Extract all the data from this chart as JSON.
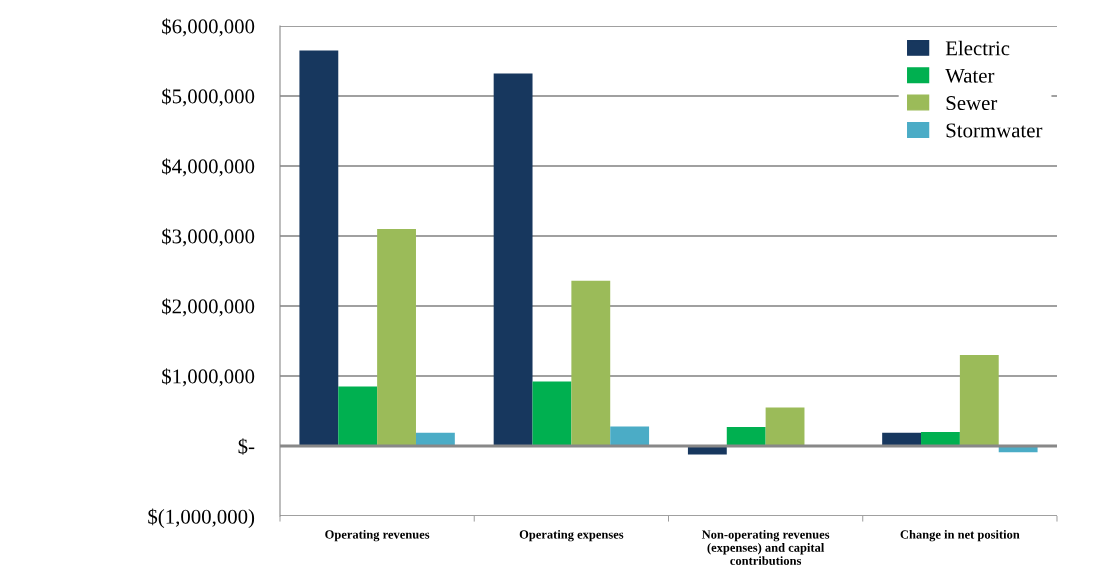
{
  "chart_data": {
    "type": "bar",
    "categories": [
      "Operating revenues",
      "Operating expenses",
      "Non-operating revenues\n(expenses) and capital\ncontributions",
      "Change in net position"
    ],
    "series": [
      {
        "name": "Electric",
        "color": "#17375e",
        "values": [
          5650000,
          5320000,
          -120000,
          190000
        ]
      },
      {
        "name": "Water",
        "color": "#00b050",
        "values": [
          850000,
          920000,
          270000,
          200000
        ]
      },
      {
        "name": "Sewer",
        "color": "#9bbb59",
        "values": [
          3100000,
          2360000,
          550000,
          1300000
        ]
      },
      {
        "name": "Stormwater",
        "color": "#4bacc6",
        "values": [
          190000,
          280000,
          0,
          -90000
        ]
      }
    ],
    "ylim": [
      -1000000,
      6000000
    ],
    "yticks": [
      {
        "value": -1000000,
        "label": "$(1,000,000)"
      },
      {
        "value": 0,
        "label": "$-"
      },
      {
        "value": 1000000,
        "label": "$1,000,000"
      },
      {
        "value": 2000000,
        "label": "$2,000,000"
      },
      {
        "value": 3000000,
        "label": "$3,000,000"
      },
      {
        "value": 4000000,
        "label": "$4,000,000"
      },
      {
        "value": 5000000,
        "label": "$5,000,000"
      },
      {
        "value": 6000000,
        "label": "$6,000,000"
      }
    ],
    "grid": "y",
    "legend": "top right"
  }
}
